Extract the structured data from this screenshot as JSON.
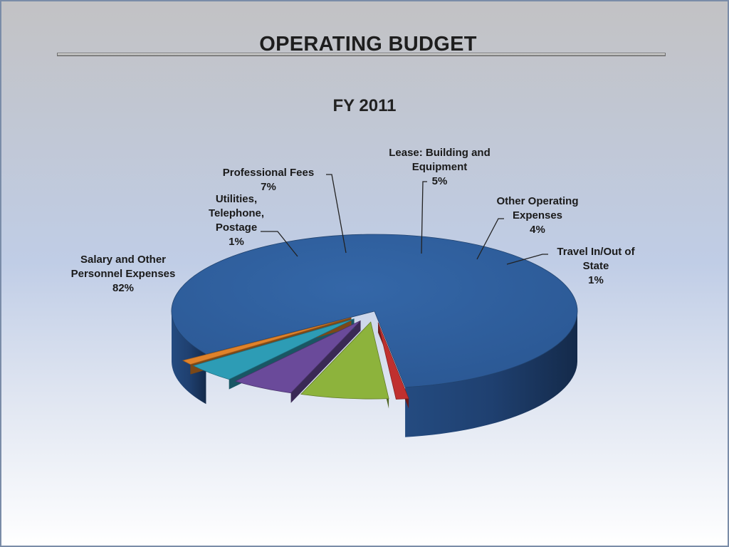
{
  "slide": {
    "title": "OPERATING BUDGET"
  },
  "chart_data": {
    "type": "pie",
    "title": "FY 2011",
    "slices": [
      {
        "label": "Salary and Other Personnel Expenses",
        "value": 82,
        "value_label": "82%",
        "color": "#2f5f9e"
      },
      {
        "label": "Utilities, Telephone, Postage",
        "value": 1,
        "value_label": "1%",
        "color": "#c0302f"
      },
      {
        "label": "Professional Fees",
        "value": 7,
        "value_label": "7%",
        "color": "#8db33c"
      },
      {
        "label": "Lease:  Building and Equipment",
        "value": 5,
        "value_label": "5%",
        "color": "#6a4a9a"
      },
      {
        "label": "Other Operating Expenses",
        "value": 4,
        "value_label": "4%",
        "color": "#2d9cb5"
      },
      {
        "label": "Travel In/Out of State",
        "value": 1,
        "value_label": "1%",
        "color": "#e0822a"
      }
    ],
    "legend": "none",
    "style": "3d-exploded"
  }
}
